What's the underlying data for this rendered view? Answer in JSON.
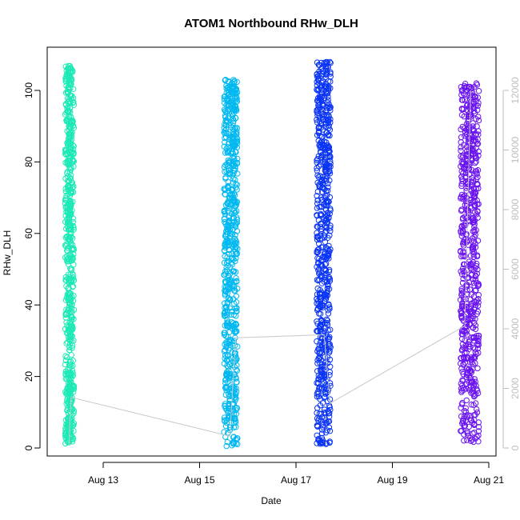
{
  "chart_data": {
    "type": "scatter",
    "title": "ATOM1 Northbound RHw_DLH",
    "xlabel": "Date",
    "ylabel": "RHw_DLH",
    "x_ticks": [
      "Aug 13",
      "Aug 15",
      "Aug 17",
      "Aug 19",
      "Aug 21"
    ],
    "xlim": [
      "2021-08-11T19:00",
      "2021-08-21T00:00"
    ],
    "ylim": [
      0,
      110
    ],
    "y_ticks": [
      0,
      20,
      40,
      60,
      80,
      100
    ],
    "y2_ticks": [
      0,
      2000,
      4000,
      6000,
      8000,
      10000,
      12000
    ],
    "y2lim": [
      0,
      13200
    ],
    "grid": false,
    "legend": "none",
    "series": [
      {
        "color": "#1de9b6",
        "x_range": [
          "2021-08-12T06:00",
          "2021-08-12T08:30"
        ],
        "y_range": [
          1,
          107
        ]
      },
      {
        "color": "#00b8f0",
        "x_range": [
          "2021-08-15T12:00",
          "2021-08-15T19:00"
        ],
        "y_range": [
          0.5,
          103
        ]
      },
      {
        "color": "#0a34f5",
        "x_range": [
          "2021-08-17T10:00",
          "2021-08-17T17:30"
        ],
        "y_range": [
          0.5,
          108
        ]
      },
      {
        "color": "#6a14f0",
        "x_range": [
          "2021-08-20T10:00",
          "2021-08-20T19:00"
        ],
        "y_range": [
          0.5,
          102
        ]
      }
    ],
    "secondary_line": {
      "color": "#c8c8c8",
      "x": [
        "2021-08-12T07:00",
        "2021-08-12T08:00",
        "2021-08-15T15:00",
        "2021-08-15T18:00",
        "2021-08-17T14:00",
        "2021-08-17T17:00",
        "2021-08-20T12:00",
        "2021-08-20T15:00"
      ],
      "y": [
        100,
        1700,
        400,
        3700,
        3800,
        1500,
        4100,
        12000
      ]
    }
  }
}
